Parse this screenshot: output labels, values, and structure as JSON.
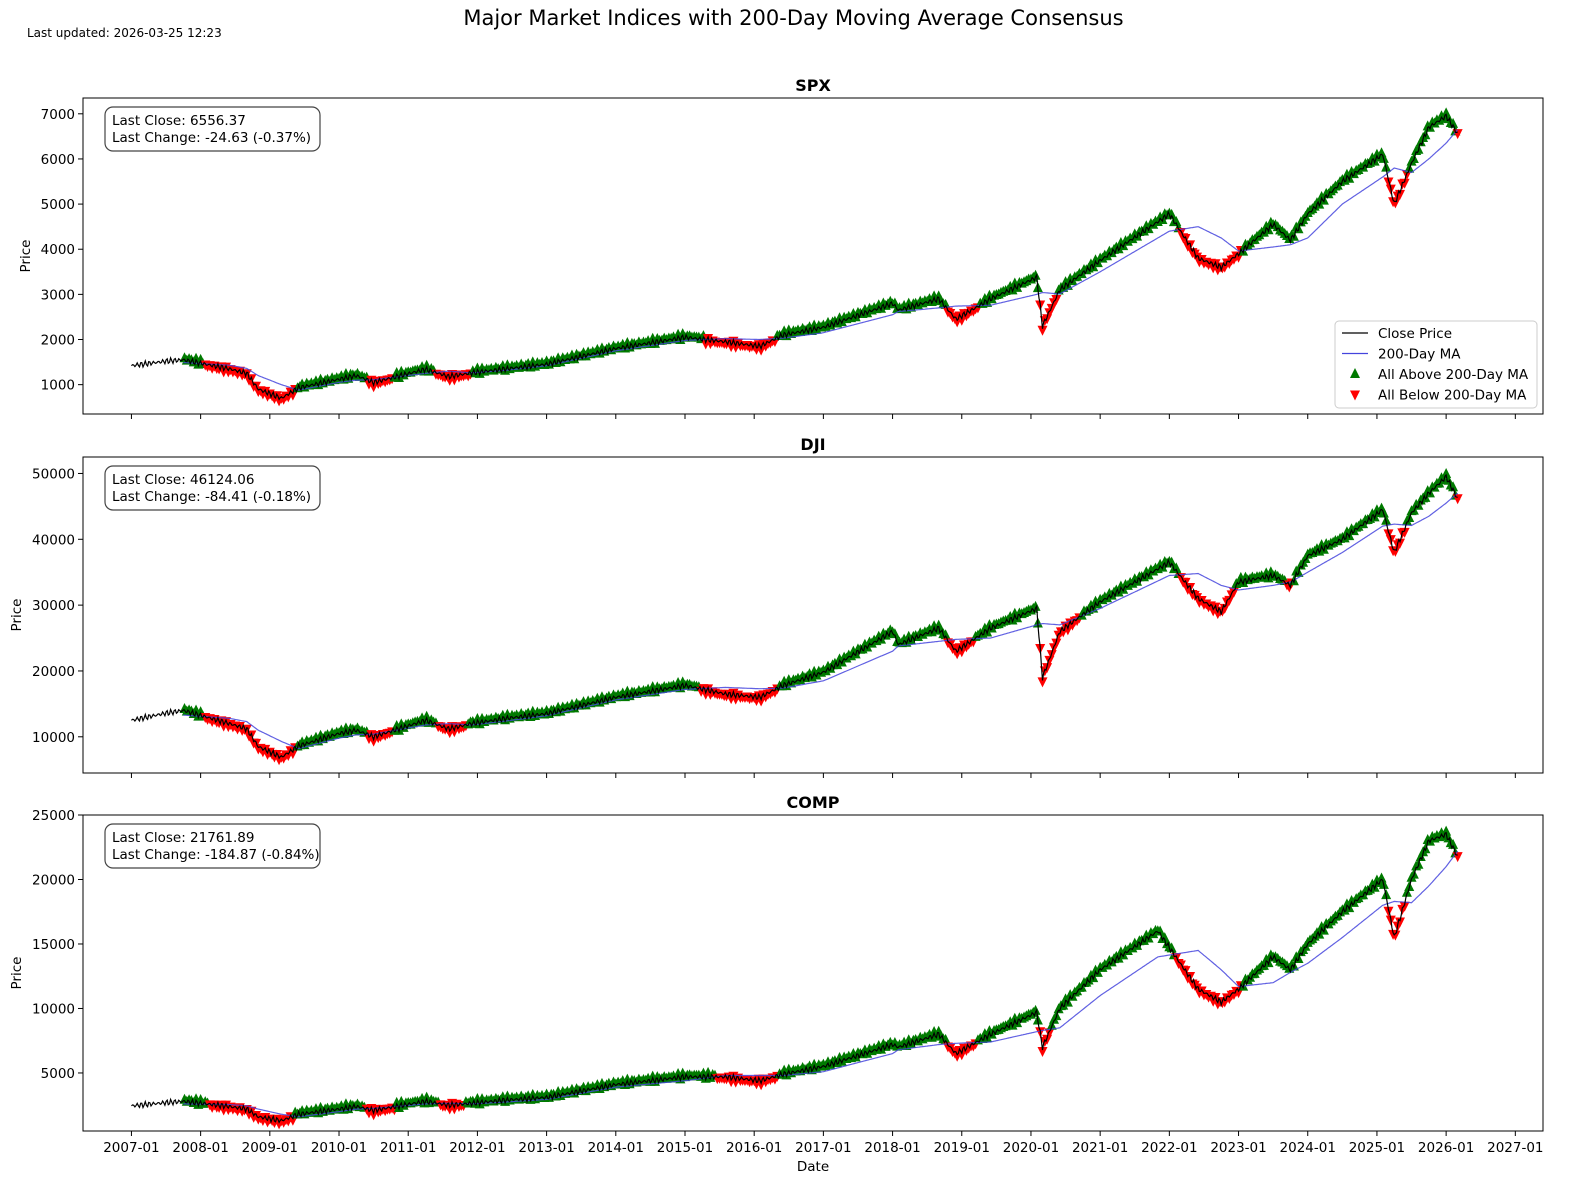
{
  "figure": {
    "title": "Major Market Indices with 200-Day Moving Average Consensus",
    "last_updated": "Last updated: 2026-03-25 12:23",
    "xlabel": "Date"
  },
  "legend": {
    "location": "lower right of SPX panel",
    "items": [
      {
        "label": "Close Price",
        "color": "#000000",
        "kind": "line"
      },
      {
        "label": "200-Day MA",
        "color": "#4444dd",
        "kind": "line"
      },
      {
        "label": "All Above 200-Day MA",
        "color": "#007a00",
        "kind": "up-triangle"
      },
      {
        "label": "All Below 200-Day MA",
        "color": "#ff0000",
        "kind": "down-triangle"
      }
    ]
  },
  "chart_data": [
    {
      "type": "line",
      "title": "SPX",
      "ylabel": "Price",
      "xlabel": "",
      "ylim": [
        350,
        7350
      ],
      "yticks": [
        1000,
        2000,
        3000,
        4000,
        5000,
        6000,
        7000
      ],
      "info": {
        "last_close": "Last Close: 6556.37",
        "last_change": "Last Change: -24.63 (-0.37%)"
      },
      "x": [
        "2007-01",
        "2007-07",
        "2007-10",
        "2008-06",
        "2008-09",
        "2008-11",
        "2009-03",
        "2009-06",
        "2010-01",
        "2010-04",
        "2010-07",
        "2011-04",
        "2011-08",
        "2011-12",
        "2012-06",
        "2013-01",
        "2014-01",
        "2015-01",
        "2015-08",
        "2016-02",
        "2016-06",
        "2017-01",
        "2018-01",
        "2018-02",
        "2018-09",
        "2018-12",
        "2019-06",
        "2020-02",
        "2020-03",
        "2020-06",
        "2021-01",
        "2022-01",
        "2022-06",
        "2022-10",
        "2023-01",
        "2023-07",
        "2023-10",
        "2024-01",
        "2024-07",
        "2025-02",
        "2025-04",
        "2025-07",
        "2025-10",
        "2026-01",
        "2026-03"
      ],
      "series": [
        {
          "name": "Close Price",
          "color": "#000000",
          "values": [
            1420,
            1520,
            1550,
            1350,
            1250,
            900,
            700,
            930,
            1120,
            1200,
            1050,
            1340,
            1180,
            1260,
            1350,
            1450,
            1800,
            2050,
            1950,
            1850,
            2100,
            2270,
            2800,
            2650,
            2900,
            2450,
            2900,
            3380,
            2300,
            3100,
            3750,
            4780,
            3800,
            3600,
            3900,
            4550,
            4200,
            4780,
            5500,
            6100,
            5000,
            5900,
            6700,
            6950,
            6556.37
          ]
        },
        {
          "name": "200-Day MA",
          "color": "#4444dd",
          "values": [
            null,
            null,
            1490,
            1430,
            1360,
            1200,
            1000,
            880,
            1050,
            1100,
            1110,
            1250,
            1300,
            1260,
            1320,
            1420,
            1750,
            1980,
            2020,
            2000,
            2030,
            2150,
            2550,
            2620,
            2700,
            2740,
            2760,
            3000,
            3040,
            3010,
            3500,
            4400,
            4500,
            4250,
            3960,
            4050,
            4100,
            4250,
            5000,
            5600,
            5800,
            5700,
            6000,
            6350,
            6650
          ]
        }
      ],
      "above_markers": "green up-triangles wherever close is above 200-Day MA",
      "below_markers": "red down-triangles wherever close is below 200-Day MA"
    },
    {
      "type": "line",
      "title": "DJI",
      "ylabel": "Price",
      "xlabel": "",
      "ylim": [
        4500,
        52500
      ],
      "yticks": [
        10000,
        20000,
        30000,
        40000,
        50000
      ],
      "info": {
        "last_close": "Last Close: 46124.06",
        "last_change": "Last Change: -84.41 (-0.18%)"
      },
      "x": [
        "2007-01",
        "2007-07",
        "2007-10",
        "2008-06",
        "2008-09",
        "2008-11",
        "2009-03",
        "2009-06",
        "2010-01",
        "2010-04",
        "2010-07",
        "2011-04",
        "2011-08",
        "2011-12",
        "2012-06",
        "2013-01",
        "2014-01",
        "2015-01",
        "2015-08",
        "2016-02",
        "2016-06",
        "2017-01",
        "2018-01",
        "2018-02",
        "2018-09",
        "2018-12",
        "2019-06",
        "2020-02",
        "2020-03",
        "2020-06",
        "2021-01",
        "2022-01",
        "2022-06",
        "2022-10",
        "2023-01",
        "2023-07",
        "2023-10",
        "2024-01",
        "2024-07",
        "2025-02",
        "2025-04",
        "2025-07",
        "2025-10",
        "2026-01",
        "2026-03"
      ],
      "series": [
        {
          "name": "Close Price",
          "color": "#000000",
          "values": [
            12500,
            13600,
            14000,
            12000,
            11200,
            8500,
            6900,
            8600,
            10500,
            11000,
            10000,
            12500,
            11200,
            12000,
            12800,
            13500,
            16000,
            17800,
            16500,
            16000,
            17800,
            19800,
            26000,
            24000,
            26500,
            23000,
            26500,
            29500,
            19000,
            26000,
            30500,
            36500,
            31000,
            29000,
            33500,
            34500,
            33000,
            37500,
            40000,
            44500,
            38000,
            44000,
            47000,
            49500,
            46124.06
          ]
        },
        {
          "name": "200-Day MA",
          "color": "#4444dd",
          "values": [
            null,
            null,
            13300,
            12800,
            12300,
            11000,
            9300,
            8200,
            9800,
            10300,
            10400,
            11800,
            12000,
            11800,
            12400,
            13200,
            15600,
            17200,
            17500,
            17300,
            17400,
            18500,
            23000,
            23800,
            24500,
            24800,
            25000,
            27000,
            27200,
            27000,
            29500,
            34500,
            34800,
            33000,
            32300,
            33000,
            33500,
            35000,
            38000,
            42000,
            42300,
            42100,
            43500,
            45500,
            47000
          ]
        }
      ],
      "above_markers": "green up-triangles wherever close is above 200-Day MA",
      "below_markers": "red down-triangles wherever close is below 200-Day MA"
    },
    {
      "type": "line",
      "title": "COMP",
      "ylabel": "Price",
      "xlabel": "Date",
      "ylim": [
        500,
        25000
      ],
      "yticks": [
        5000,
        10000,
        15000,
        20000,
        25000
      ],
      "xticks": [
        "2007-01",
        "2008-01",
        "2009-01",
        "2010-01",
        "2011-01",
        "2012-01",
        "2013-01",
        "2014-01",
        "2015-01",
        "2016-01",
        "2017-01",
        "2018-01",
        "2019-01",
        "2020-01",
        "2021-01",
        "2022-01",
        "2023-01",
        "2024-01",
        "2025-01",
        "2026-01",
        "2027-01"
      ],
      "info": {
        "last_close": "Last Close: 21761.89",
        "last_change": "Last Change: -184.87 (-0.84%)"
      },
      "x": [
        "2007-01",
        "2007-07",
        "2007-10",
        "2008-06",
        "2008-09",
        "2008-11",
        "2009-03",
        "2009-06",
        "2010-01",
        "2010-04",
        "2010-07",
        "2011-04",
        "2011-08",
        "2011-12",
        "2012-06",
        "2013-01",
        "2014-01",
        "2015-01",
        "2015-08",
        "2016-02",
        "2016-06",
        "2017-01",
        "2018-01",
        "2018-02",
        "2018-09",
        "2018-12",
        "2019-06",
        "2020-02",
        "2020-03",
        "2020-06",
        "2021-01",
        "2021-11",
        "2022-06",
        "2022-10",
        "2023-01",
        "2023-07",
        "2023-10",
        "2024-01",
        "2024-07",
        "2025-02",
        "2025-04",
        "2025-07",
        "2025-10",
        "2026-01",
        "2026-03"
      ],
      "series": [
        {
          "name": "Close Price",
          "color": "#000000",
          "values": [
            2450,
            2700,
            2800,
            2400,
            2200,
            1600,
            1300,
            1800,
            2200,
            2400,
            2100,
            2800,
            2500,
            2650,
            2900,
            3100,
            4100,
            4700,
            4700,
            4400,
            4900,
            5500,
            7200,
            7000,
            8000,
            6500,
            8000,
            9700,
            7000,
            10000,
            13000,
            16000,
            11500,
            10500,
            11500,
            14000,
            13000,
            15000,
            17500,
            20000,
            15500,
            20000,
            23000,
            23500,
            21761.89
          ]
        },
        {
          "name": "200-Day MA",
          "color": "#4444dd",
          "values": [
            null,
            null,
            2600,
            2550,
            2450,
            2200,
            1800,
            1600,
            2000,
            2200,
            2250,
            2600,
            2650,
            2600,
            2750,
            2950,
            3900,
            4400,
            4800,
            4800,
            4800,
            5100,
            6500,
            6800,
            7200,
            7300,
            7400,
            8200,
            8300,
            8500,
            11000,
            14000,
            14500,
            13000,
            11700,
            12000,
            12800,
            13500,
            15500,
            18000,
            18300,
            18200,
            19500,
            21000,
            22200
          ]
        }
      ],
      "above_markers": "green up-triangles wherever close is above 200-Day MA",
      "below_markers": "red down-triangles wherever close is below 200-Day MA"
    }
  ]
}
